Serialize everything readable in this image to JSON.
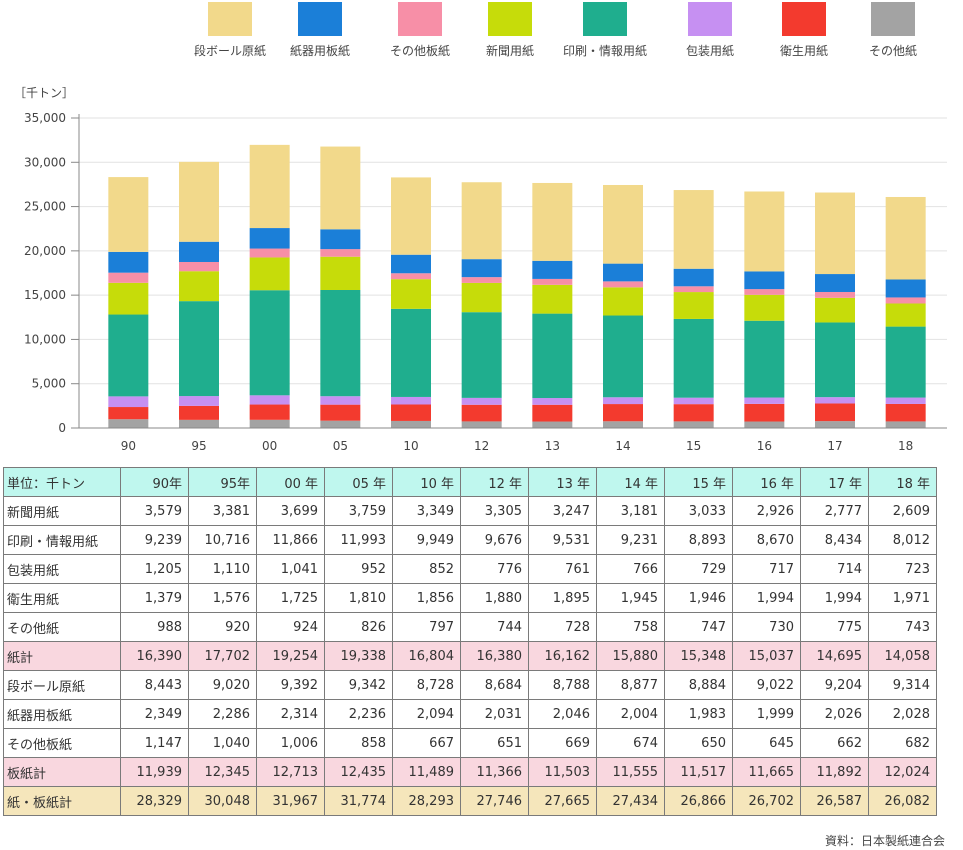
{
  "chart_data": {
    "type": "bar",
    "stacked": true,
    "categories": [
      "90",
      "95",
      "00",
      "05",
      "10",
      "12",
      "13",
      "14",
      "15",
      "16",
      "17",
      "18"
    ],
    "unit_label": "［千トン］",
    "ylim": [
      0,
      35000
    ],
    "yticks": [
      "0",
      "5,000",
      "10,000",
      "15,000",
      "20,000",
      "25,000",
      "30,000",
      "35,000"
    ],
    "ytick_values": [
      0,
      5000,
      10000,
      15000,
      20000,
      25000,
      30000,
      35000
    ],
    "grid": true,
    "legend_position": "top",
    "series": [
      {
        "name": "その他紙",
        "color": "#a3a3a3",
        "values": [
          988,
          920,
          924,
          826,
          797,
          744,
          728,
          758,
          747,
          730,
          775,
          743
        ]
      },
      {
        "name": "衛生用紙",
        "color": "#f33a2e",
        "values": [
          1379,
          1576,
          1725,
          1810,
          1856,
          1880,
          1895,
          1945,
          1946,
          1994,
          1994,
          1971
        ]
      },
      {
        "name": "包装用紙",
        "color": "#c690f2",
        "values": [
          1205,
          1110,
          1041,
          952,
          852,
          776,
          761,
          766,
          729,
          717,
          714,
          723
        ]
      },
      {
        "name": "印刷・情報用紙",
        "color": "#1fae8e",
        "values": [
          9239,
          10716,
          11866,
          11993,
          9949,
          9676,
          9531,
          9231,
          8893,
          8670,
          8434,
          8012
        ]
      },
      {
        "name": "新聞用紙",
        "color": "#c6dc0a",
        "values": [
          3579,
          3381,
          3699,
          3759,
          3349,
          3305,
          3247,
          3181,
          3033,
          2926,
          2777,
          2609
        ]
      },
      {
        "name": "その他板紙",
        "color": "#f78fa7",
        "values": [
          1147,
          1040,
          1006,
          858,
          667,
          651,
          669,
          674,
          650,
          645,
          662,
          682
        ]
      },
      {
        "name": "紙器用板紙",
        "color": "#1b7fd8",
        "values": [
          2349,
          2286,
          2314,
          2236,
          2094,
          2031,
          2046,
          2004,
          1983,
          1999,
          2026,
          2028
        ]
      },
      {
        "name": "段ボール原紙",
        "color": "#f2d98b",
        "values": [
          8443,
          9020,
          9392,
          9342,
          8728,
          8684,
          8788,
          8877,
          8884,
          9022,
          9204,
          9314
        ]
      }
    ]
  },
  "legend": [
    {
      "label": "段ボール原紙",
      "color": "#f2d98b"
    },
    {
      "label": "紙器用板紙",
      "color": "#1b7fd8"
    },
    {
      "label": "その他板紙",
      "color": "#f78fa7"
    },
    {
      "label": "新聞用紙",
      "color": "#c6dc0a"
    },
    {
      "label": "印刷・情報用紙",
      "color": "#1fae8e"
    },
    {
      "label": "包装用紙",
      "color": "#c690f2"
    },
    {
      "label": "衛生用紙",
      "color": "#f33a2e"
    },
    {
      "label": "その他紙",
      "color": "#a3a3a3"
    }
  ],
  "table": {
    "corner": "単位：千トン",
    "columns": [
      "90年",
      "95年",
      "00 年",
      "05 年",
      "10 年",
      "12 年",
      "13 年",
      "14 年",
      "15 年",
      "16 年",
      "17 年",
      "18 年"
    ],
    "rows": [
      {
        "label": "新聞用紙",
        "style": "plain",
        "values": [
          "3,579",
          "3,381",
          "3,699",
          "3,759",
          "3,349",
          "3,305",
          "3,247",
          "3,181",
          "3,033",
          "2,926",
          "2,777",
          "2,609"
        ]
      },
      {
        "label": "印刷・情報用紙",
        "style": "plain",
        "values": [
          "9,239",
          "10,716",
          "11,866",
          "11,993",
          "9,949",
          "9,676",
          "9,531",
          "9,231",
          "8,893",
          "8,670",
          "8,434",
          "8,012"
        ]
      },
      {
        "label": "包装用紙",
        "style": "plain",
        "values": [
          "1,205",
          "1,110",
          "1,041",
          "952",
          "852",
          "776",
          "761",
          "766",
          "729",
          "717",
          "714",
          "723"
        ]
      },
      {
        "label": "衛生用紙",
        "style": "plain",
        "values": [
          "1,379",
          "1,576",
          "1,725",
          "1,810",
          "1,856",
          "1,880",
          "1,895",
          "1,945",
          "1,946",
          "1,994",
          "1,994",
          "1,971"
        ]
      },
      {
        "label": "その他紙",
        "style": "plain",
        "values": [
          "988",
          "920",
          "924",
          "826",
          "797",
          "744",
          "728",
          "758",
          "747",
          "730",
          "775",
          "743"
        ]
      },
      {
        "label": "紙計",
        "style": "pink",
        "values": [
          "16,390",
          "17,702",
          "19,254",
          "19,338",
          "16,804",
          "16,380",
          "16,162",
          "15,880",
          "15,348",
          "15,037",
          "14,695",
          "14,058"
        ]
      },
      {
        "label": "段ボール原紙",
        "style": "plain",
        "values": [
          "8,443",
          "9,020",
          "9,392",
          "9,342",
          "8,728",
          "8,684",
          "8,788",
          "8,877",
          "8,884",
          "9,022",
          "9,204",
          "9,314"
        ]
      },
      {
        "label": "紙器用板紙",
        "style": "plain",
        "values": [
          "2,349",
          "2,286",
          "2,314",
          "2,236",
          "2,094",
          "2,031",
          "2,046",
          "2,004",
          "1,983",
          "1,999",
          "2,026",
          "2,028"
        ]
      },
      {
        "label": "その他板紙",
        "style": "plain",
        "values": [
          "1,147",
          "1,040",
          "1,006",
          "858",
          "667",
          "651",
          "669",
          "674",
          "650",
          "645",
          "662",
          "682"
        ]
      },
      {
        "label": "板紙計",
        "style": "pink",
        "values": [
          "11,939",
          "12,345",
          "12,713",
          "12,435",
          "11,489",
          "11,366",
          "11,503",
          "11,555",
          "11,517",
          "11,665",
          "11,892",
          "12,024"
        ]
      },
      {
        "label": "紙・板紙計",
        "style": "beige",
        "values": [
          "28,329",
          "30,048",
          "31,967",
          "31,774",
          "28,293",
          "27,746",
          "27,665",
          "27,434",
          "26,866",
          "26,702",
          "26,587",
          "26,082"
        ]
      }
    ]
  },
  "source": "資料：日本製紙連合会"
}
